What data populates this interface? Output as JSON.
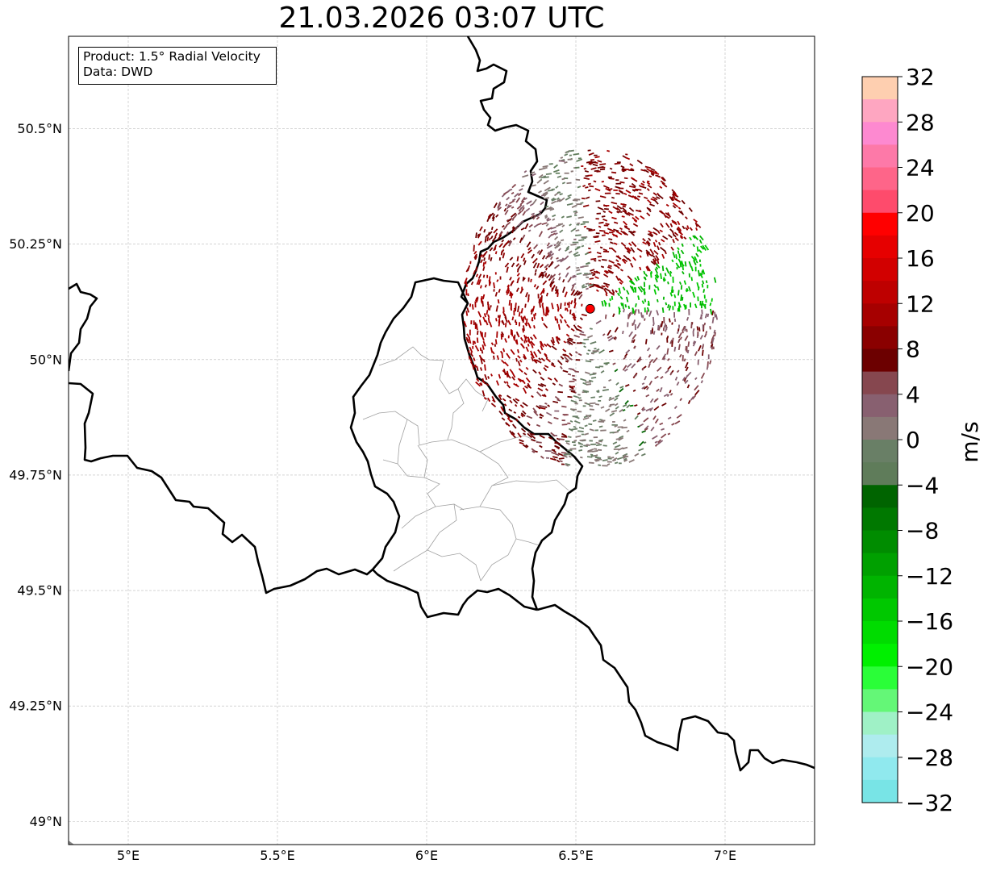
{
  "title": "21.03.2026 03:07 UTC",
  "info": {
    "product": "Product: 1.5° Radial Velocity",
    "data": "Data: DWD"
  },
  "map": {
    "lon_range": [
      4.8,
      7.3
    ],
    "lat_range": [
      48.95,
      50.7
    ],
    "lon_ticks": [
      {
        "value": 5.0,
        "label": "5°E"
      },
      {
        "value": 5.5,
        "label": "5.5°E"
      },
      {
        "value": 6.0,
        "label": "6°E"
      },
      {
        "value": 6.5,
        "label": "6.5°E"
      },
      {
        "value": 7.0,
        "label": "7°E"
      }
    ],
    "lat_ticks": [
      {
        "value": 49.0,
        "label": "49°N"
      },
      {
        "value": 49.25,
        "label": "49.25°N"
      },
      {
        "value": 49.5,
        "label": "49.5°N"
      },
      {
        "value": 49.75,
        "label": "49.75°N"
      },
      {
        "value": 50.0,
        "label": "50°N"
      },
      {
        "value": 50.25,
        "label": "50.25°N"
      },
      {
        "value": 50.5,
        "label": "50.5°N"
      }
    ],
    "radar_site": {
      "lon": 6.548,
      "lat": 50.11,
      "color": "#ff0000"
    },
    "radar_range_deg_lon": 0.43,
    "radar_range_deg_lat": 0.35
  },
  "colorbar": {
    "label": "m/s",
    "min": -32,
    "max": 32,
    "tick_labels": [
      "32",
      "28",
      "24",
      "20",
      "16",
      "12",
      "8",
      "4",
      "0",
      "−4",
      "−8",
      "−12",
      "−16",
      "−20",
      "−24",
      "−28",
      "−32"
    ],
    "colors_top_to_bottom": [
      "#fecfb0",
      "#fea6c1",
      "#fd89d0",
      "#fd79a8",
      "#fe6589",
      "#fe4b6c",
      "#ff0000",
      "#e60000",
      "#d20000",
      "#be0000",
      "#a60000",
      "#8a0000",
      "#6c0000",
      "#86474f",
      "#886070",
      "#897876",
      "#697f66",
      "#5f7c5a",
      "#006400",
      "#007800",
      "#008c00",
      "#00a000",
      "#00b400",
      "#00c800",
      "#00dc00",
      "#00f000",
      "#2afe38",
      "#64f777",
      "#9ff1c6",
      "#aeecee",
      "#90e9ee",
      "#78e4e6"
    ]
  }
}
